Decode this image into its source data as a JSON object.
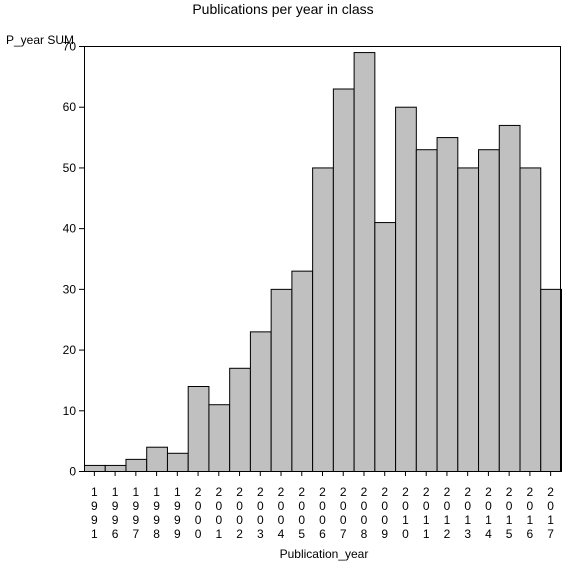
{
  "chart_data": {
    "type": "bar",
    "title": "Publications per year in class",
    "ylabel": "P_year SUM",
    "xlabel": "Publication_year",
    "categories": [
      "1991",
      "1996",
      "1997",
      "1998",
      "1999",
      "2000",
      "2001",
      "2002",
      "2003",
      "2004",
      "2005",
      "2006",
      "2007",
      "2008",
      "2009",
      "2010",
      "2011",
      "2012",
      "2013",
      "2014",
      "2015",
      "2016",
      "2017"
    ],
    "values": [
      1,
      1,
      2,
      4,
      3,
      14,
      11,
      17,
      23,
      30,
      33,
      50,
      63,
      69,
      41,
      60,
      53,
      55,
      50,
      53,
      57,
      50,
      30
    ],
    "ylim": [
      0,
      70
    ],
    "yticks": [
      0,
      10,
      20,
      30,
      40,
      50,
      60,
      70
    ],
    "grid": false,
    "legend": "none",
    "bar_color": "#c0c0c0",
    "bar_edge_color": "#000000"
  }
}
